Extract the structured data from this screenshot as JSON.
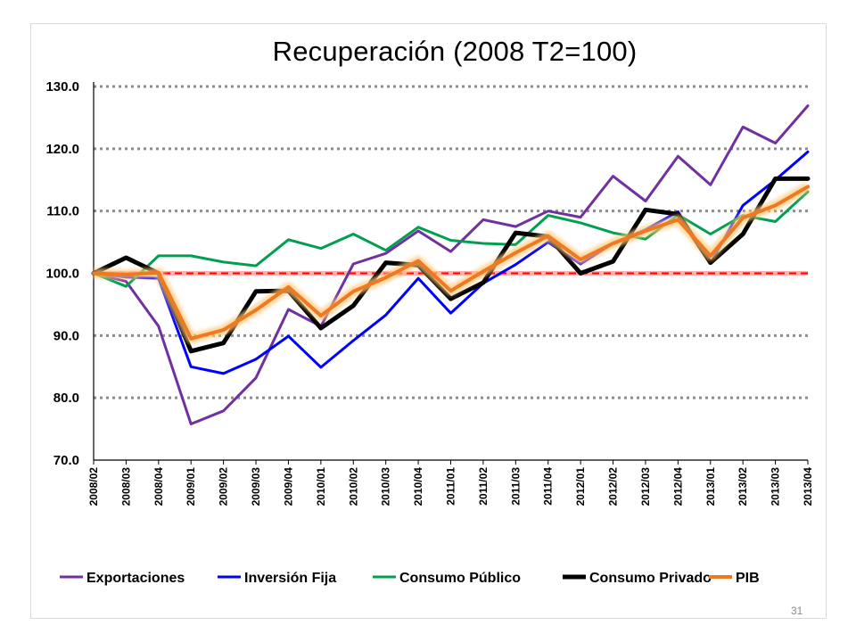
{
  "page_number": "31",
  "chart_data": {
    "type": "line",
    "title": "Recuperación (2008 T2=100)",
    "xlabel": "",
    "ylabel": "",
    "ylim": [
      70,
      130
    ],
    "y_ticks": [
      "70.0",
      "80.0",
      "90.0",
      "100.0",
      "110.0",
      "120.0",
      "130.0"
    ],
    "grid": "dotted horizontal at 80, 90, 110, 120, 130",
    "reference_line": {
      "value": 100,
      "color": "#ff0000",
      "style": "dashed, glowing"
    },
    "legend_position": "bottom",
    "x": [
      "2008/02",
      "2008/03",
      "2008/04",
      "2009/01",
      "2009/02",
      "2009/03",
      "2009/04",
      "2010/01",
      "2010/02",
      "2010/03",
      "2010/04",
      "2011/01",
      "2011/02",
      "2011/03",
      "2011/04",
      "2012/01",
      "2012/02",
      "2012/03",
      "2012/04",
      "2013/01",
      "2013/02",
      "2013/03",
      "2013/04"
    ],
    "series": [
      {
        "name": "Exportaciones",
        "color": "#7030a0",
        "width": 3,
        "values": [
          100.0,
          98.7,
          91.5,
          75.8,
          77.9,
          83.2,
          94.2,
          91.5,
          101.5,
          103.2,
          106.8,
          103.5,
          108.6,
          107.5,
          110.0,
          109.0,
          115.6,
          111.6,
          118.8,
          114.2,
          123.5,
          120.9,
          126.9
        ]
      },
      {
        "name": "Inversión Fija",
        "color": "#0000ff",
        "width": 3,
        "values": [
          100.0,
          99.4,
          99.2,
          85.0,
          83.9,
          86.2,
          89.9,
          84.9,
          89.2,
          93.3,
          99.2,
          93.6,
          98.4,
          101.4,
          105.0,
          101.5,
          104.8,
          107.0,
          109.9,
          101.6,
          110.9,
          115.0,
          119.5
        ]
      },
      {
        "name": "Consumo Público",
        "color": "#00a050",
        "width": 3,
        "values": [
          100.0,
          97.9,
          102.8,
          102.8,
          101.8,
          101.2,
          105.4,
          104.0,
          106.3,
          103.7,
          107.4,
          105.3,
          104.8,
          104.6,
          109.3,
          108.1,
          106.5,
          105.5,
          109.4,
          106.3,
          109.3,
          108.3,
          113.1
        ]
      },
      {
        "name": "Consumo Privado",
        "color": "#000000",
        "width": 5,
        "values": [
          100.0,
          102.5,
          100.0,
          87.5,
          88.8,
          97.1,
          97.2,
          91.2,
          94.8,
          101.7,
          101.3,
          95.9,
          98.5,
          106.5,
          105.9,
          100.0,
          101.9,
          110.2,
          109.5,
          101.7,
          106.3,
          115.2,
          115.2
        ]
      },
      {
        "name": "PIB",
        "color": "#f07820",
        "width": 4,
        "values": [
          100.0,
          99.8,
          100.1,
          89.5,
          90.9,
          94.1,
          97.8,
          93.2,
          97.1,
          99.3,
          102.0,
          97.2,
          100.3,
          103.3,
          106.0,
          102.2,
          104.8,
          106.8,
          108.6,
          102.8,
          108.9,
          110.9,
          113.9
        ]
      }
    ]
  }
}
